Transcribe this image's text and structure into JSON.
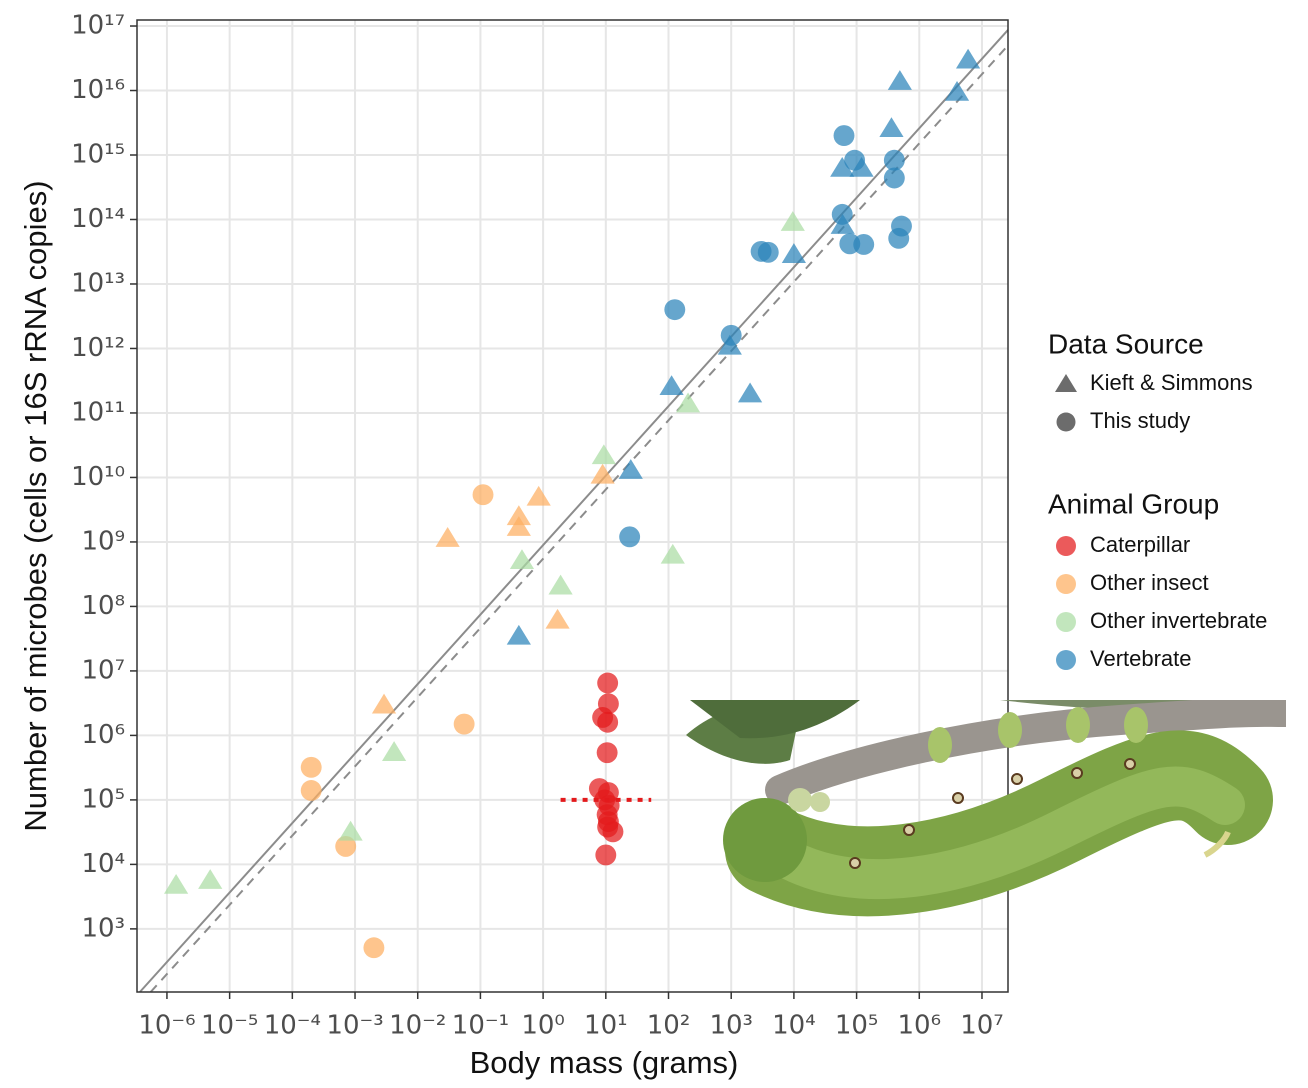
{
  "chart_data": {
    "type": "scatter",
    "x_label": "Body mass (grams)",
    "y_label": "Number of microbes (cells or 16S rRNA copies)",
    "log_x": true,
    "log_y": true,
    "grid": true,
    "xlim": [
      3.33e-07,
      26000000.0
    ],
    "ylim": [
      105,
      1.24e+17
    ],
    "xticks": [
      {
        "value": 1e-06,
        "label": "10⁻⁶"
      },
      {
        "value": 1e-05,
        "label": "10⁻⁵"
      },
      {
        "value": 0.0001,
        "label": "10⁻⁴"
      },
      {
        "value": 0.001,
        "label": "10⁻³"
      },
      {
        "value": 0.01,
        "label": "10⁻²"
      },
      {
        "value": 0.1,
        "label": "10⁻¹"
      },
      {
        "value": 1,
        "label": "10⁰"
      },
      {
        "value": 10,
        "label": "10¹"
      },
      {
        "value": 100,
        "label": "10²"
      },
      {
        "value": 1000,
        "label": "10³"
      },
      {
        "value": 10000,
        "label": "10⁴"
      },
      {
        "value": 100000,
        "label": "10⁵"
      },
      {
        "value": 1000000,
        "label": "10⁶"
      },
      {
        "value": 10000000,
        "label": "10⁷"
      }
    ],
    "yticks": [
      {
        "value": 1000.0,
        "label": "10³"
      },
      {
        "value": 10000.0,
        "label": "10⁴"
      },
      {
        "value": 100000.0,
        "label": "10⁵"
      },
      {
        "value": 1000000.0,
        "label": "10⁶"
      },
      {
        "value": 10000000.0,
        "label": "10⁷"
      },
      {
        "value": 100000000.0,
        "label": "10⁸"
      },
      {
        "value": 1000000000.0,
        "label": "10⁹"
      },
      {
        "value": 10000000000.0,
        "label": "10¹⁰"
      },
      {
        "value": 100000000000.0,
        "label": "10¹¹"
      },
      {
        "value": 1000000000000.0,
        "label": "10¹²"
      },
      {
        "value": 10000000000000.0,
        "label": "10¹³"
      },
      {
        "value": 100000000000000.0,
        "label": "10¹⁴"
      },
      {
        "value": 1000000000000000.0,
        "label": "10¹⁵"
      },
      {
        "value": 1e+16,
        "label": "10¹⁶"
      },
      {
        "value": 1e+17,
        "label": "10¹⁷"
      }
    ],
    "shape_legend": {
      "title": "Data Source",
      "items": [
        {
          "name": "Kieft & Simmons",
          "marker": "triangle"
        },
        {
          "name": "This study",
          "marker": "circle"
        }
      ]
    },
    "color_legend_title": "Animal Group",
    "series": [
      {
        "name": "Caterpillar",
        "color": "#e31a1c",
        "x": [
          10.7,
          11,
          8.9,
          10.7,
          10.5,
          7.9,
          11,
          9.6,
          11.3,
          10.5,
          11,
          10.7,
          13,
          10
        ],
        "y": [
          6500000.0,
          3100000.0,
          1900000.0,
          1600000.0,
          540000.0,
          150000.0,
          130000.0,
          100000.0,
          82000.0,
          59000.0,
          46000.0,
          38000.0,
          32000.0,
          14000.0
        ],
        "marker": [
          "circle",
          "circle",
          "circle",
          "circle",
          "circle",
          "circle",
          "circle",
          "circle",
          "circle",
          "circle",
          "circle",
          "circle",
          "circle",
          "circle"
        ]
      },
      {
        "name": "Other insect",
        "color": "#fdae61",
        "x": [
          0.0029,
          0.03,
          0.41,
          0.41,
          0.85,
          1.7,
          8.9,
          0.0002,
          0.0002,
          0.00071,
          0.002,
          0.055,
          0.11
        ],
        "y": [
          3000000.0,
          1150000000.0,
          2500000000.0,
          1700000000.0,
          5000000000.0,
          62000000.0,
          11000000000.0,
          320000.0,
          140000.0,
          19000.0,
          510,
          1500000.0,
          5400000000.0
        ],
        "marker": [
          "triangle",
          "triangle",
          "triangle",
          "triangle",
          "triangle",
          "triangle",
          "triangle",
          "circle",
          "circle",
          "circle",
          "circle",
          "circle",
          "circle"
        ]
      },
      {
        "name": "Other invertebrate",
        "color": "#abdda4",
        "x": [
          1.4e-06,
          4.9e-06,
          0.00085,
          0.0042,
          0.46,
          1.9,
          9.3,
          117,
          205,
          9600
        ],
        "y": [
          4800.0,
          5700.0,
          32000.0,
          550000.0,
          520000000.0,
          210000000.0,
          22000000000.0,
          630000000.0,
          140000000000.0,
          91000000000000.0
        ],
        "marker": [
          "triangle",
          "triangle",
          "triangle",
          "triangle",
          "triangle",
          "triangle",
          "triangle",
          "triangle",
          "triangle",
          "triangle"
        ]
      },
      {
        "name": "Vertebrate",
        "color": "#2b83ba",
        "x": [
          490000,
          6000000,
          4000000,
          360000,
          59000,
          120000,
          60000,
          10000,
          950,
          112,
          2000,
          25,
          0.41,
          63000,
          93000,
          400000,
          400000,
          59000,
          78000,
          130000,
          520000,
          470000,
          3000,
          3900,
          126,
          1000,
          24
        ],
        "y": [
          1.4e+16,
          3e+16,
          9500000000000000.0,
          2600000000000000.0,
          630000000000000.0,
          630000000000000.0,
          82000000000000.0,
          29000000000000.0,
          1100000000000.0,
          260000000000.0,
          200000000000.0,
          13000000000.0,
          35000000.0,
          2000000000000000.0,
          830000000000000.0,
          830000000000000.0,
          440000000000000.0,
          120000000000000.0,
          42000000000000.0,
          41000000000000.0,
          79000000000000.0,
          51000000000000.0,
          32000000000000.0,
          31000000000000.0,
          4000000000000.0,
          1600000000000.0,
          1200000000.0
        ],
        "marker": [
          "triangle",
          "triangle",
          "triangle",
          "triangle",
          "triangle",
          "triangle",
          "triangle",
          "triangle",
          "triangle",
          "triangle",
          "triangle",
          "triangle",
          "triangle",
          "circle",
          "circle",
          "circle",
          "circle",
          "circle",
          "circle",
          "circle",
          "circle",
          "circle",
          "circle",
          "circle",
          "circle",
          "circle",
          "circle"
        ]
      }
    ],
    "fit_lines": [
      {
        "style": "solid",
        "color": "#8c8c8c",
        "x": [
          3.7e-07,
          26000000.0
        ],
        "y": [
          105,
          8.7e+16
        ]
      },
      {
        "style": "dashed",
        "color": "#8c8c8c",
        "x": [
          5.5e-07,
          26000000.0
        ],
        "y": [
          105,
          5e+16
        ]
      }
    ],
    "caterpillar_mean": {
      "color": "#e31a1c",
      "x": [
        1.9,
        53
      ],
      "y": 100000
    }
  }
}
